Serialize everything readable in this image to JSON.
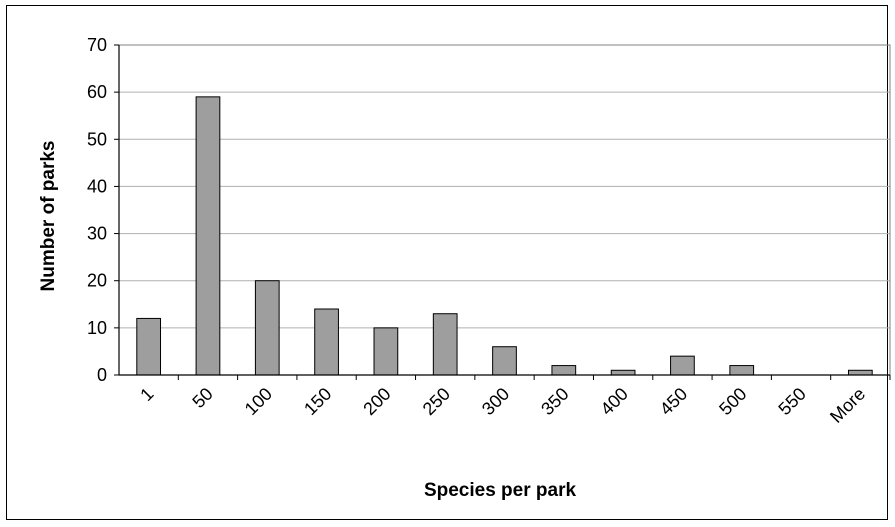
{
  "chart_data": {
    "type": "bar",
    "title": "",
    "xlabel": "Species per park",
    "ylabel": "Number of parks",
    "categories": [
      "1",
      "50",
      "100",
      "150",
      "200",
      "250",
      "300",
      "350",
      "400",
      "450",
      "500",
      "550",
      "More"
    ],
    "values": [
      12,
      59,
      20,
      14,
      10,
      13,
      6,
      2,
      1,
      4,
      2,
      0,
      1
    ],
    "ylim": [
      0,
      70
    ],
    "yticks": [
      0,
      10,
      20,
      30,
      40,
      50,
      60,
      70
    ],
    "grid": true,
    "legend": "none",
    "colors": {
      "bar_fill": "#9e9e9e",
      "bar_stroke": "#000000",
      "gridline": "#b0b0b0",
      "plot_border": "#808080"
    }
  }
}
